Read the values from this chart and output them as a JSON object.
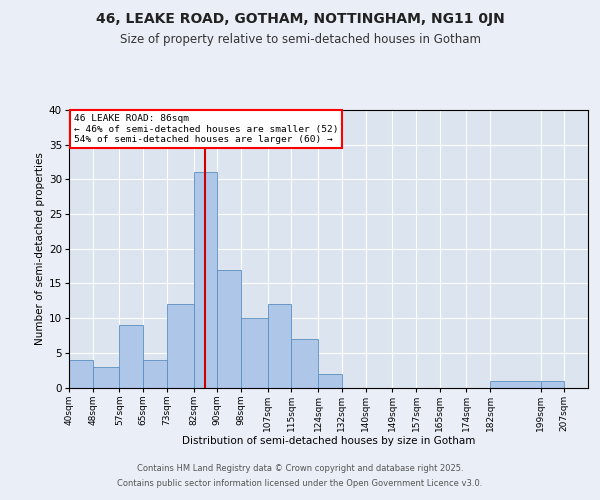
{
  "title1": "46, LEAKE ROAD, GOTHAM, NOTTINGHAM, NG11 0JN",
  "title2": "Size of property relative to semi-detached houses in Gotham",
  "xlabel": "Distribution of semi-detached houses by size in Gotham",
  "ylabel": "Number of semi-detached properties",
  "bin_labels": [
    "40sqm",
    "48sqm",
    "57sqm",
    "65sqm",
    "73sqm",
    "82sqm",
    "90sqm",
    "98sqm",
    "107sqm",
    "115sqm",
    "124sqm",
    "132sqm",
    "140sqm",
    "149sqm",
    "157sqm",
    "165sqm",
    "174sqm",
    "182sqm",
    "199sqm",
    "207sqm"
  ],
  "bin_edges": [
    40,
    48,
    57,
    65,
    73,
    82,
    90,
    98,
    107,
    115,
    124,
    132,
    140,
    149,
    157,
    165,
    174,
    182,
    199,
    207,
    215
  ],
  "bar_heights": [
    4,
    3,
    9,
    4,
    12,
    31,
    17,
    10,
    12,
    7,
    2,
    0,
    0,
    0,
    0,
    0,
    0,
    1,
    1,
    0
  ],
  "bar_color": "#aec6e8",
  "bar_edge_color": "#5a8fc0",
  "property_value": 86,
  "vline_color": "#cc0000",
  "annotation_title": "46 LEAKE ROAD: 86sqm",
  "annotation_line1": "← 46% of semi-detached houses are smaller (52)",
  "annotation_line2": "54% of semi-detached houses are larger (60) →",
  "ylim": [
    0,
    40
  ],
  "yticks": [
    0,
    5,
    10,
    15,
    20,
    25,
    30,
    35,
    40
  ],
  "footer1": "Contains HM Land Registry data © Crown copyright and database right 2025.",
  "footer2": "Contains public sector information licensed under the Open Government Licence v3.0.",
  "bg_color": "#eaeef6",
  "plot_bg_color": "#dce4f0"
}
